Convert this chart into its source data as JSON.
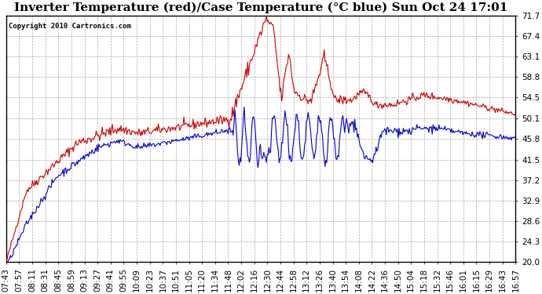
{
  "title": "Inverter Temperature (red)/Case Temperature (°C blue) Sun Oct 24 17:01",
  "copyright": "Copyright 2010 Cartronics.com",
  "y_ticks": [
    20.0,
    24.3,
    28.6,
    32.9,
    37.2,
    41.5,
    45.8,
    50.1,
    54.5,
    58.8,
    63.1,
    67.4,
    71.7
  ],
  "x_labels": [
    "07:43",
    "07:57",
    "08:11",
    "08:31",
    "08:45",
    "08:59",
    "09:13",
    "09:27",
    "09:41",
    "09:55",
    "10:09",
    "10:23",
    "10:37",
    "10:51",
    "11:05",
    "11:20",
    "11:34",
    "11:48",
    "12:02",
    "12:16",
    "12:30",
    "12:44",
    "12:58",
    "13:12",
    "13:26",
    "13:40",
    "13:54",
    "14:08",
    "14:22",
    "14:36",
    "14:50",
    "15:04",
    "15:18",
    "15:32",
    "15:46",
    "16:01",
    "16:15",
    "16:29",
    "16:43",
    "16:57"
  ],
  "y_min": 20.0,
  "y_max": 71.7,
  "bg_color": "#ffffff",
  "plot_bg_color": "#ffffff",
  "grid_color": "#aaaaaa",
  "red_color": "#cc0000",
  "blue_color": "#0000cc",
  "title_fontsize": 11,
  "tick_fontsize": 7.5,
  "copyright_fontsize": 6.5
}
